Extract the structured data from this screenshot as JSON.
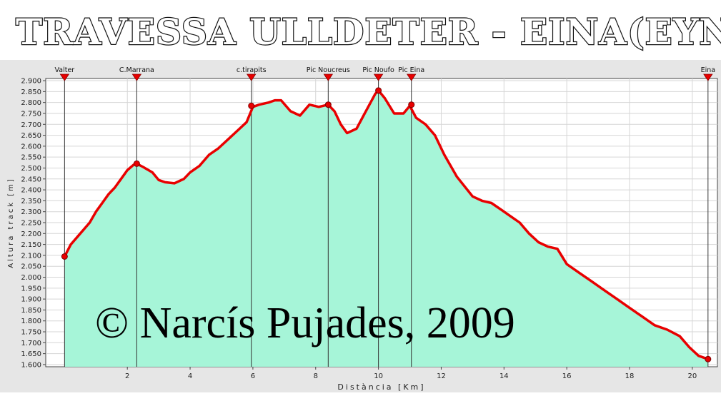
{
  "title": "TRAVESSA ULLDETER - EINA(EYNE)",
  "watermark": "© Narcís Pujades, 2009",
  "colors": {
    "fill": "#a6f5d8",
    "line": "#e80000",
    "marker": "#e80000",
    "plot_bg": "#ffffff",
    "frame_bg": "#e6e6e6",
    "title_text": "#ffffff",
    "title_outline": "#111111"
  },
  "chart_data": {
    "type": "area",
    "xlabel": "Distància [Km]",
    "ylabel": "Altura track [m]",
    "xlim": [
      -0.6,
      20.8
    ],
    "ylim": [
      1590,
      2910
    ],
    "x_ticks": [
      2,
      4,
      6,
      8,
      10,
      12,
      14,
      16,
      18,
      20
    ],
    "x_tick_labels": [
      "2",
      "4",
      "6",
      "8",
      "10",
      "12",
      "14",
      "16",
      "18",
      "20"
    ],
    "y_ticks": [
      1600,
      1650,
      1700,
      1750,
      1800,
      1850,
      1900,
      1950,
      2000,
      2050,
      2100,
      2150,
      2200,
      2250,
      2300,
      2350,
      2400,
      2450,
      2500,
      2550,
      2600,
      2650,
      2700,
      2750,
      2800,
      2850,
      2900
    ],
    "y_tick_labels": [
      "1.600",
      "1.650",
      "1.700",
      "1.750",
      "1.800",
      "1.850",
      "1.900",
      "1.950",
      "2.000",
      "2.050",
      "2.100",
      "2.150",
      "2.200",
      "2.250",
      "2.300",
      "2.350",
      "2.400",
      "2.450",
      "2.500",
      "2.550",
      "2.600",
      "2.650",
      "2.700",
      "2.750",
      "2.800",
      "2.850",
      "2.900"
    ],
    "grid": true,
    "series": [
      {
        "x": [
          0.0,
          0.2,
          0.5,
          0.8,
          1.0,
          1.2,
          1.4,
          1.6,
          1.8,
          2.0,
          2.2,
          2.3,
          2.5,
          2.8,
          3.0,
          3.2,
          3.5,
          3.8,
          4.0,
          4.3,
          4.6,
          4.9,
          5.2,
          5.5,
          5.8,
          6.0,
          6.2,
          6.5,
          6.7,
          6.9,
          7.2,
          7.5,
          7.8,
          8.1,
          8.4,
          8.6,
          8.8,
          9.0,
          9.3,
          9.6,
          9.9,
          10.0,
          10.2,
          10.5,
          10.8,
          11.0,
          11.2,
          11.5,
          11.8,
          12.1,
          12.5,
          13.0,
          13.3,
          13.6,
          13.9,
          14.2,
          14.5,
          14.8,
          15.1,
          15.4,
          15.7,
          16.0,
          16.4,
          16.8,
          17.2,
          17.6,
          18.0,
          18.4,
          18.8,
          19.2,
          19.6,
          19.9,
          20.2,
          20.5
        ],
        "y": [
          2095,
          2150,
          2200,
          2250,
          2300,
          2340,
          2380,
          2410,
          2450,
          2490,
          2515,
          2520,
          2505,
          2480,
          2445,
          2435,
          2430,
          2450,
          2480,
          2510,
          2560,
          2590,
          2630,
          2670,
          2710,
          2780,
          2790,
          2800,
          2810,
          2810,
          2760,
          2740,
          2790,
          2780,
          2790,
          2760,
          2700,
          2660,
          2680,
          2760,
          2840,
          2855,
          2820,
          2750,
          2750,
          2785,
          2730,
          2700,
          2650,
          2560,
          2460,
          2370,
          2350,
          2340,
          2310,
          2280,
          2250,
          2200,
          2160,
          2140,
          2130,
          2060,
          2020,
          1980,
          1940,
          1900,
          1860,
          1820,
          1780,
          1760,
          1730,
          1680,
          1640,
          1625
        ]
      }
    ],
    "waypoints": [
      {
        "label": "Valter",
        "x": 0.0,
        "y": 2095
      },
      {
        "label": "C.Marrana",
        "x": 2.3,
        "y": 2520
      },
      {
        "label": "c.tirapits",
        "x": 5.95,
        "y": 2785
      },
      {
        "label": "Pic Noucreus",
        "x": 8.4,
        "y": 2790
      },
      {
        "label": "Pic Noufo",
        "x": 10.0,
        "y": 2855
      },
      {
        "label": "Pic Eina",
        "x": 11.05,
        "y": 2790
      },
      {
        "label": "Eina",
        "x": 20.5,
        "y": 1625
      }
    ]
  }
}
